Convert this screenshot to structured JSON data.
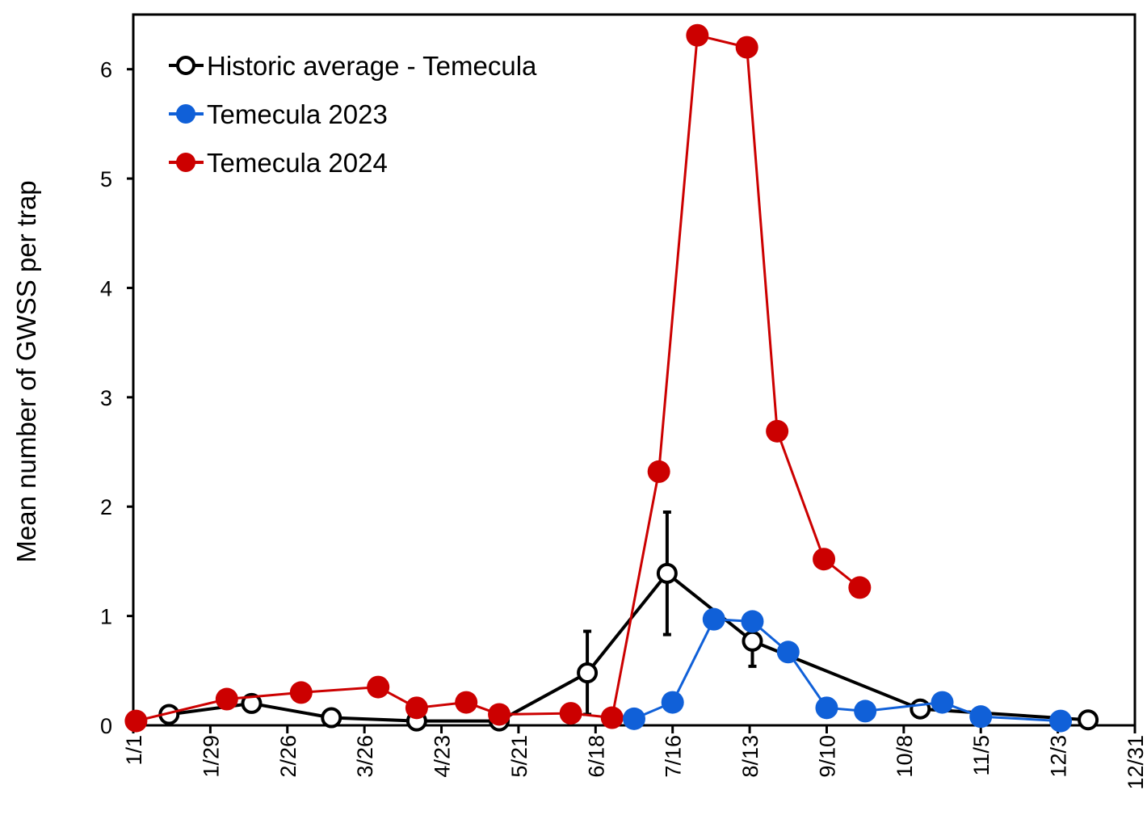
{
  "chart_data": {
    "type": "line",
    "title": "",
    "xlabel": "",
    "ylabel": "Mean number of GWSS per trap",
    "xlim": [
      "1/1",
      "12/31"
    ],
    "ylim": [
      0,
      6.5
    ],
    "x_ticks": [
      "1/1",
      "1/29",
      "2/26",
      "3/26",
      "4/23",
      "5/21",
      "6/18",
      "7/16",
      "8/13",
      "9/10",
      "10/8",
      "11/5",
      "12/3",
      "12/31"
    ],
    "y_ticks": [
      0,
      1,
      2,
      3,
      4,
      5,
      6
    ],
    "grid": false,
    "legend_position": "top-left",
    "series": [
      {
        "name": "Historic average - Temecula",
        "color": "#000000",
        "marker": "open-circle",
        "x": [
          "1/14",
          "2/13",
          "3/14",
          "4/14",
          "5/14",
          "6/15",
          "7/14",
          "8/14",
          "10/14",
          "12/14"
        ],
        "y": [
          0.1,
          0.2,
          0.07,
          0.04,
          0.04,
          0.48,
          1.39,
          0.77,
          0.15,
          0.05
        ],
        "error": [
          null,
          null,
          null,
          null,
          null,
          0.38,
          0.56,
          0.23,
          null,
          null
        ]
      },
      {
        "name": "Temecula 2023",
        "color": "#1060d8",
        "marker": "filled-circle",
        "x": [
          "7/2",
          "7/16",
          "7/31",
          "8/14",
          "8/27",
          "9/10",
          "9/24",
          "10/22",
          "11/5",
          "12/4"
        ],
        "y": [
          0.06,
          0.21,
          0.97,
          0.95,
          0.67,
          0.16,
          0.13,
          0.21,
          0.08,
          0.04
        ]
      },
      {
        "name": "Temecula 2024",
        "color": "#cc0000",
        "marker": "filled-circle",
        "x": [
          "1/2",
          "2/4",
          "3/3",
          "3/31",
          "4/14",
          "5/2",
          "5/14",
          "6/9",
          "6/24",
          "7/11",
          "7/25",
          "8/12",
          "8/23",
          "9/9",
          "9/22"
        ],
        "y": [
          0.04,
          0.24,
          0.3,
          0.35,
          0.16,
          0.21,
          0.1,
          0.11,
          0.07,
          2.32,
          6.31,
          6.2,
          2.69,
          1.52,
          1.26
        ]
      }
    ]
  }
}
